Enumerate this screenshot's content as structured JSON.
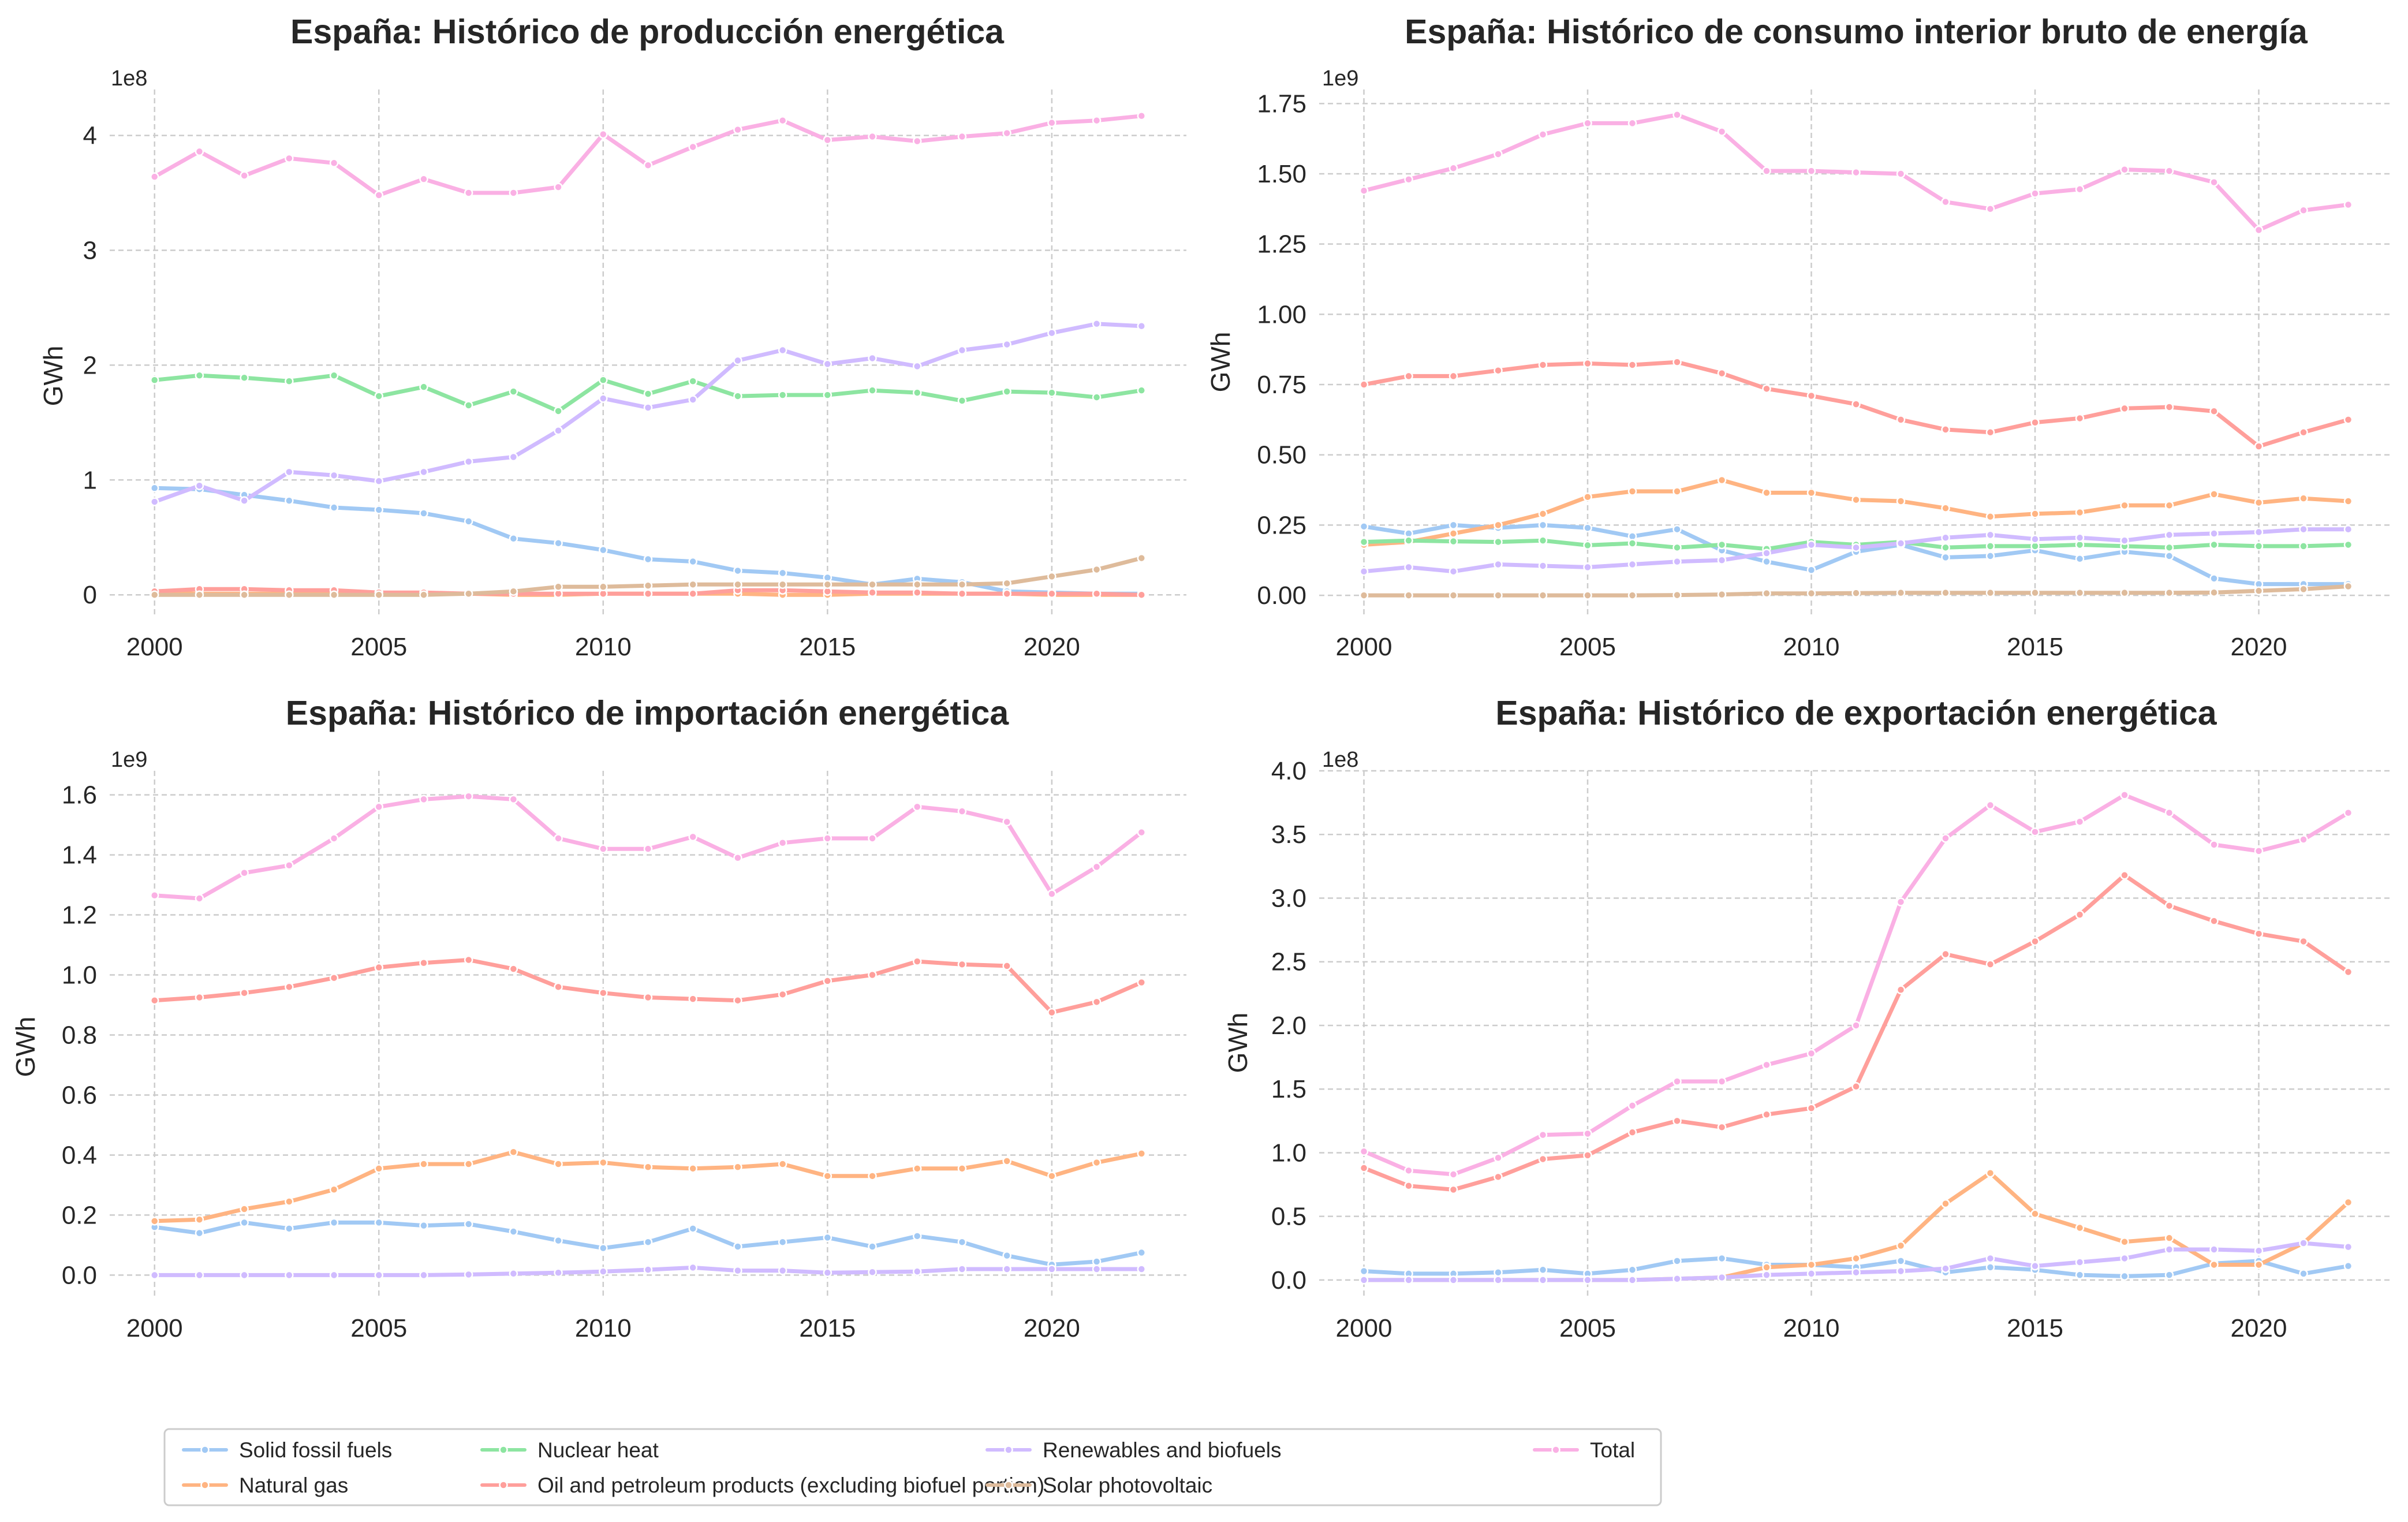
{
  "legend": {
    "items": [
      {
        "series": "Solid fossil fuels",
        "color": "#a1c9f4"
      },
      {
        "series": "Natural gas",
        "color": "#ffb482"
      },
      {
        "series": "Nuclear heat",
        "color": "#8de5a1"
      },
      {
        "series": "Oil and petroleum products (excluding biofuel portion)",
        "color": "#ff9f9b"
      },
      {
        "series": "Renewables and biofuels",
        "color": "#d0bbff"
      },
      {
        "series": "Solar photovoltaic",
        "color": "#debb9b"
      },
      {
        "series": "Total",
        "color": "#fab0e4"
      }
    ],
    "placement": "bottom-left"
  },
  "chart_data": [
    {
      "type": "line",
      "title": "España: Histórico de producción energética",
      "ylabel": "GWh",
      "offset_label": "1e8",
      "x": [
        2000,
        2001,
        2002,
        2003,
        2004,
        2005,
        2006,
        2007,
        2008,
        2009,
        2010,
        2011,
        2012,
        2013,
        2014,
        2015,
        2016,
        2017,
        2018,
        2019,
        2020,
        2021,
        2022
      ],
      "xticks": [
        "2000",
        "2005",
        "2010",
        "2015",
        "2020"
      ],
      "yticks": [
        "0",
        "1",
        "2",
        "3",
        "4"
      ],
      "ylim": [
        -0.2,
        4.4
      ],
      "grid": true,
      "series": [
        {
          "name": "Solid fossil fuels",
          "color": "#a1c9f4",
          "values": [
            0.93,
            0.92,
            0.87,
            0.82,
            0.76,
            0.74,
            0.71,
            0.64,
            0.49,
            0.45,
            0.39,
            0.31,
            0.29,
            0.21,
            0.19,
            0.15,
            0.09,
            0.14,
            0.11,
            0.03,
            0.02,
            0.01,
            0.01
          ]
        },
        {
          "name": "Natural gas",
          "color": "#ffb482",
          "values": [
            0.02,
            0.01,
            0.01,
            0.01,
            0.01,
            0.01,
            0.01,
            0.01,
            0.0,
            0.0,
            0.01,
            0.01,
            0.01,
            0.01,
            0.0,
            0.0,
            0.01,
            0.01,
            0.01,
            0.01,
            0.0,
            0.0,
            0.0
          ]
        },
        {
          "name": "Nuclear heat",
          "color": "#8de5a1",
          "values": [
            1.87,
            1.91,
            1.89,
            1.86,
            1.91,
            1.73,
            1.81,
            1.65,
            1.77,
            1.6,
            1.87,
            1.75,
            1.86,
            1.73,
            1.74,
            1.74,
            1.78,
            1.76,
            1.69,
            1.77,
            1.76,
            1.72,
            1.78
          ]
        },
        {
          "name": "Oil and petroleum products (excluding biofuel portion)",
          "color": "#ff9f9b",
          "values": [
            0.03,
            0.05,
            0.05,
            0.04,
            0.04,
            0.02,
            0.02,
            0.01,
            0.01,
            0.01,
            0.01,
            0.01,
            0.01,
            0.04,
            0.04,
            0.03,
            0.02,
            0.02,
            0.01,
            0.01,
            0.01,
            0.01,
            0.0
          ]
        },
        {
          "name": "Renewables and biofuels",
          "color": "#d0bbff",
          "values": [
            0.81,
            0.95,
            0.82,
            1.07,
            1.04,
            0.99,
            1.07,
            1.16,
            1.2,
            1.43,
            1.71,
            1.63,
            1.7,
            2.04,
            2.13,
            2.01,
            2.06,
            1.99,
            2.13,
            2.18,
            2.28,
            2.36,
            2.34
          ]
        },
        {
          "name": "Solar photovoltaic",
          "color": "#debb9b",
          "values": [
            0.0,
            0.0,
            0.0,
            0.0,
            0.0,
            0.0,
            0.0,
            0.01,
            0.03,
            0.07,
            0.07,
            0.08,
            0.09,
            0.09,
            0.09,
            0.09,
            0.09,
            0.09,
            0.09,
            0.1,
            0.16,
            0.22,
            0.32
          ]
        },
        {
          "name": "Total",
          "color": "#fab0e4",
          "values": [
            3.64,
            3.86,
            3.65,
            3.8,
            3.76,
            3.48,
            3.62,
            3.5,
            3.5,
            3.55,
            4.01,
            3.74,
            3.9,
            4.05,
            4.13,
            3.96,
            3.99,
            3.95,
            3.99,
            4.02,
            4.11,
            4.13,
            4.17
          ]
        }
      ]
    },
    {
      "type": "line",
      "title": "España: Histórico de consumo interior bruto de energía",
      "ylabel": "GWh",
      "offset_label": "1e9",
      "x": [
        2000,
        2001,
        2002,
        2003,
        2004,
        2005,
        2006,
        2007,
        2008,
        2009,
        2010,
        2011,
        2012,
        2013,
        2014,
        2015,
        2016,
        2017,
        2018,
        2019,
        2020,
        2021,
        2022
      ],
      "xticks": [
        "2000",
        "2005",
        "2010",
        "2015",
        "2020"
      ],
      "yticks": [
        "0.00",
        "0.25",
        "0.50",
        "0.75",
        "1.00",
        "1.25",
        "1.50",
        "1.75"
      ],
      "ylim": [
        -0.08,
        1.8
      ],
      "grid": true,
      "series": [
        {
          "name": "Solid fossil fuels",
          "color": "#a1c9f4",
          "values": [
            0.245,
            0.22,
            0.25,
            0.24,
            0.25,
            0.24,
            0.21,
            0.235,
            0.16,
            0.12,
            0.09,
            0.155,
            0.18,
            0.135,
            0.14,
            0.16,
            0.13,
            0.155,
            0.14,
            0.06,
            0.04,
            0.04,
            0.04
          ]
        },
        {
          "name": "Natural gas",
          "color": "#ffb482",
          "values": [
            0.18,
            0.19,
            0.22,
            0.25,
            0.29,
            0.35,
            0.37,
            0.37,
            0.41,
            0.365,
            0.365,
            0.34,
            0.335,
            0.31,
            0.28,
            0.29,
            0.295,
            0.32,
            0.32,
            0.36,
            0.33,
            0.345,
            0.335
          ]
        },
        {
          "name": "Nuclear heat",
          "color": "#8de5a1",
          "values": [
            0.19,
            0.195,
            0.192,
            0.19,
            0.195,
            0.178,
            0.185,
            0.17,
            0.18,
            0.165,
            0.19,
            0.18,
            0.19,
            0.17,
            0.175,
            0.175,
            0.18,
            0.175,
            0.17,
            0.18,
            0.175,
            0.175,
            0.18
          ]
        },
        {
          "name": "Oil and petroleum products (excluding biofuel portion)",
          "color": "#ff9f9b",
          "values": [
            0.75,
            0.78,
            0.78,
            0.8,
            0.82,
            0.825,
            0.82,
            0.83,
            0.79,
            0.735,
            0.71,
            0.68,
            0.625,
            0.59,
            0.58,
            0.615,
            0.63,
            0.665,
            0.67,
            0.655,
            0.53,
            0.58,
            0.625
          ]
        },
        {
          "name": "Renewables and biofuels",
          "color": "#d0bbff",
          "values": [
            0.085,
            0.1,
            0.085,
            0.11,
            0.105,
            0.1,
            0.11,
            0.12,
            0.125,
            0.15,
            0.18,
            0.17,
            0.185,
            0.205,
            0.215,
            0.2,
            0.205,
            0.195,
            0.215,
            0.22,
            0.225,
            0.235,
            0.235
          ]
        },
        {
          "name": "Solar photovoltaic",
          "color": "#debb9b",
          "values": [
            0.0,
            0.0,
            0.0,
            0.0,
            0.0,
            0.0,
            0.0,
            0.001,
            0.003,
            0.007,
            0.007,
            0.008,
            0.009,
            0.009,
            0.009,
            0.009,
            0.009,
            0.009,
            0.009,
            0.01,
            0.016,
            0.022,
            0.032
          ]
        },
        {
          "name": "Total",
          "color": "#fab0e4",
          "values": [
            1.44,
            1.48,
            1.52,
            1.57,
            1.64,
            1.68,
            1.68,
            1.71,
            1.65,
            1.51,
            1.51,
            1.505,
            1.5,
            1.4,
            1.375,
            1.43,
            1.445,
            1.515,
            1.51,
            1.47,
            1.3,
            1.37,
            1.39
          ]
        }
      ]
    },
    {
      "type": "line",
      "title": "España: Histórico de importación energética",
      "ylabel": "GWh",
      "offset_label": "1e9",
      "x": [
        2000,
        2001,
        2002,
        2003,
        2004,
        2005,
        2006,
        2007,
        2008,
        2009,
        2010,
        2011,
        2012,
        2013,
        2014,
        2015,
        2016,
        2017,
        2018,
        2019,
        2020,
        2021,
        2022
      ],
      "xticks": [
        "2000",
        "2005",
        "2010",
        "2015",
        "2020"
      ],
      "yticks": [
        "0.0",
        "0.2",
        "0.4",
        "0.6",
        "0.8",
        "1.0",
        "1.2",
        "1.4",
        "1.6"
      ],
      "ylim": [
        -0.08,
        1.68
      ],
      "grid": true,
      "series": [
        {
          "name": "Solid fossil fuels",
          "color": "#a1c9f4",
          "values": [
            0.16,
            0.14,
            0.175,
            0.155,
            0.175,
            0.175,
            0.165,
            0.17,
            0.145,
            0.115,
            0.09,
            0.11,
            0.155,
            0.095,
            0.11,
            0.125,
            0.095,
            0.13,
            0.11,
            0.065,
            0.035,
            0.045,
            0.075
          ]
        },
        {
          "name": "Natural gas",
          "color": "#ffb482",
          "values": [
            0.18,
            0.185,
            0.22,
            0.245,
            0.285,
            0.355,
            0.37,
            0.37,
            0.41,
            0.37,
            0.375,
            0.36,
            0.355,
            0.36,
            0.37,
            0.33,
            0.33,
            0.355,
            0.355,
            0.38,
            0.33,
            0.375,
            0.405
          ]
        },
        {
          "name": "Oil and petroleum products (excluding biofuel portion)",
          "color": "#ff9f9b",
          "values": [
            0.915,
            0.925,
            0.94,
            0.96,
            0.99,
            1.025,
            1.04,
            1.05,
            1.02,
            0.96,
            0.94,
            0.925,
            0.92,
            0.915,
            0.935,
            0.98,
            1.0,
            1.045,
            1.035,
            1.03,
            0.875,
            0.91,
            0.975
          ]
        },
        {
          "name": "Renewables and biofuels",
          "color": "#d0bbff",
          "values": [
            0.0,
            0.0,
            0.0,
            0.0,
            0.0,
            0.0,
            0.0,
            0.002,
            0.005,
            0.008,
            0.012,
            0.018,
            0.025,
            0.015,
            0.015,
            0.008,
            0.01,
            0.012,
            0.02,
            0.02,
            0.02,
            0.02,
            0.02
          ]
        },
        {
          "name": "Total",
          "color": "#fab0e4",
          "values": [
            1.265,
            1.255,
            1.34,
            1.365,
            1.455,
            1.56,
            1.585,
            1.595,
            1.585,
            1.455,
            1.42,
            1.42,
            1.46,
            1.39,
            1.44,
            1.455,
            1.455,
            1.56,
            1.545,
            1.51,
            1.27,
            1.36,
            1.475
          ]
        }
      ]
    },
    {
      "type": "line",
      "title": "España: Histórico de exportación energética",
      "ylabel": "GWh",
      "offset_label": "1e8",
      "x": [
        2000,
        2001,
        2002,
        2003,
        2004,
        2005,
        2006,
        2007,
        2008,
        2009,
        2010,
        2011,
        2012,
        2013,
        2014,
        2015,
        2016,
        2017,
        2018,
        2019,
        2020,
        2021,
        2022
      ],
      "xticks": [
        "2000",
        "2005",
        "2010",
        "2015",
        "2020"
      ],
      "yticks": [
        "0.0",
        "0.5",
        "1.0",
        "1.5",
        "2.0",
        "2.5",
        "3.0",
        "3.5",
        "4.0"
      ],
      "ylim": [
        -0.15,
        4.0
      ],
      "grid": true,
      "series": [
        {
          "name": "Solid fossil fuels",
          "color": "#a1c9f4",
          "values": [
            0.07,
            0.05,
            0.05,
            0.06,
            0.08,
            0.05,
            0.08,
            0.15,
            0.17,
            0.12,
            0.12,
            0.1,
            0.15,
            0.06,
            0.1,
            0.08,
            0.04,
            0.03,
            0.04,
            0.13,
            0.15,
            0.05,
            0.11
          ]
        },
        {
          "name": "Natural gas",
          "color": "#ffb482",
          "values": [
            0.0,
            0.0,
            0.0,
            0.0,
            0.0,
            0.0,
            0.0,
            0.01,
            0.02,
            0.1,
            0.12,
            0.17,
            0.27,
            0.6,
            0.84,
            0.52,
            0.41,
            0.3,
            0.33,
            0.12,
            0.12,
            0.29,
            0.61
          ]
        },
        {
          "name": "Oil and petroleum products (excluding biofuel portion)",
          "color": "#ff9f9b",
          "values": [
            0.88,
            0.74,
            0.71,
            0.81,
            0.95,
            0.98,
            1.16,
            1.25,
            1.2,
            1.3,
            1.35,
            1.52,
            2.28,
            2.56,
            2.48,
            2.66,
            2.87,
            3.18,
            2.94,
            2.82,
            2.72,
            2.66,
            2.42
          ]
        },
        {
          "name": "Renewables and biofuels",
          "color": "#d0bbff",
          "values": [
            0.0,
            0.0,
            0.0,
            0.0,
            0.0,
            0.0,
            0.0,
            0.01,
            0.02,
            0.04,
            0.05,
            0.06,
            0.07,
            0.09,
            0.17,
            0.11,
            0.14,
            0.17,
            0.24,
            0.24,
            0.23,
            0.29,
            0.26
          ]
        },
        {
          "name": "Total",
          "color": "#fab0e4",
          "values": [
            1.01,
            0.86,
            0.83,
            0.96,
            1.14,
            1.15,
            1.37,
            1.56,
            1.56,
            1.69,
            1.78,
            2.0,
            2.97,
            3.47,
            3.73,
            3.52,
            3.6,
            3.81,
            3.67,
            3.42,
            3.37,
            3.46,
            3.67
          ]
        }
      ]
    }
  ]
}
